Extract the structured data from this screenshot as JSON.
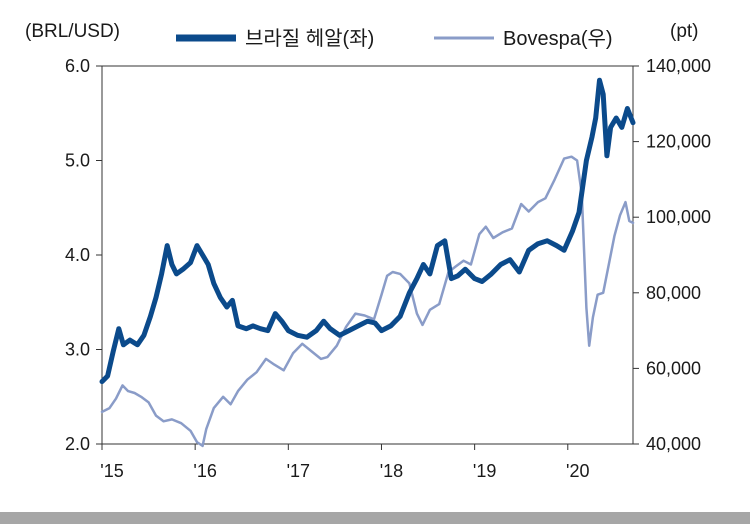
{
  "chart_data": {
    "type": "line",
    "title": "",
    "left_axis_unit": "(BRL/USD)",
    "right_axis_unit": "(pt)",
    "left_axis": {
      "ticks": [
        "6.0",
        "5.0",
        "4.0",
        "3.0",
        "2.0"
      ],
      "range": [
        2.0,
        6.0
      ]
    },
    "right_axis": {
      "ticks": [
        "140,000",
        "120,000",
        "100,000",
        "80,000",
        "60,000",
        "40,000"
      ],
      "range": [
        40000,
        140000
      ]
    },
    "x_axis": {
      "ticks": [
        "'15",
        "'16",
        "'17",
        "'18",
        "'19",
        "'20"
      ],
      "tick_years": [
        2015,
        2016,
        2017,
        2018,
        2019,
        2020
      ],
      "range": [
        2015.0,
        2020.7
      ]
    },
    "series": [
      {
        "name": "브라질 헤알(좌)",
        "axis": "left",
        "color": "#0b4a8b",
        "points": [
          [
            2015.0,
            2.66
          ],
          [
            2015.06,
            2.72
          ],
          [
            2015.12,
            2.98
          ],
          [
            2015.18,
            3.22
          ],
          [
            2015.23,
            3.05
          ],
          [
            2015.3,
            3.1
          ],
          [
            2015.38,
            3.05
          ],
          [
            2015.45,
            3.15
          ],
          [
            2015.52,
            3.35
          ],
          [
            2015.58,
            3.55
          ],
          [
            2015.64,
            3.8
          ],
          [
            2015.7,
            4.1
          ],
          [
            2015.75,
            3.9
          ],
          [
            2015.8,
            3.8
          ],
          [
            2015.87,
            3.85
          ],
          [
            2015.95,
            3.92
          ],
          [
            2016.02,
            4.1
          ],
          [
            2016.08,
            4.0
          ],
          [
            2016.14,
            3.9
          ],
          [
            2016.2,
            3.7
          ],
          [
            2016.27,
            3.55
          ],
          [
            2016.34,
            3.45
          ],
          [
            2016.4,
            3.52
          ],
          [
            2016.46,
            3.25
          ],
          [
            2016.55,
            3.22
          ],
          [
            2016.62,
            3.25
          ],
          [
            2016.7,
            3.22
          ],
          [
            2016.78,
            3.2
          ],
          [
            2016.86,
            3.38
          ],
          [
            2016.93,
            3.3
          ],
          [
            2017.0,
            3.2
          ],
          [
            2017.1,
            3.15
          ],
          [
            2017.2,
            3.13
          ],
          [
            2017.3,
            3.2
          ],
          [
            2017.38,
            3.3
          ],
          [
            2017.45,
            3.22
          ],
          [
            2017.55,
            3.15
          ],
          [
            2017.65,
            3.2
          ],
          [
            2017.75,
            3.25
          ],
          [
            2017.85,
            3.3
          ],
          [
            2017.93,
            3.28
          ],
          [
            2018.0,
            3.2
          ],
          [
            2018.1,
            3.25
          ],
          [
            2018.2,
            3.35
          ],
          [
            2018.3,
            3.6
          ],
          [
            2018.38,
            3.75
          ],
          [
            2018.45,
            3.9
          ],
          [
            2018.52,
            3.8
          ],
          [
            2018.6,
            4.1
          ],
          [
            2018.68,
            4.15
          ],
          [
            2018.75,
            3.75
          ],
          [
            2018.82,
            3.78
          ],
          [
            2018.9,
            3.85
          ],
          [
            2019.0,
            3.75
          ],
          [
            2019.08,
            3.72
          ],
          [
            2019.18,
            3.8
          ],
          [
            2019.28,
            3.9
          ],
          [
            2019.38,
            3.95
          ],
          [
            2019.48,
            3.82
          ],
          [
            2019.58,
            4.05
          ],
          [
            2019.68,
            4.12
          ],
          [
            2019.78,
            4.15
          ],
          [
            2019.88,
            4.1
          ],
          [
            2019.96,
            4.05
          ],
          [
            2020.05,
            4.25
          ],
          [
            2020.12,
            4.45
          ],
          [
            2020.2,
            5.0
          ],
          [
            2020.26,
            5.25
          ],
          [
            2020.3,
            5.45
          ],
          [
            2020.34,
            5.85
          ],
          [
            2020.38,
            5.7
          ],
          [
            2020.42,
            5.05
          ],
          [
            2020.46,
            5.35
          ],
          [
            2020.52,
            5.45
          ],
          [
            2020.58,
            5.35
          ],
          [
            2020.64,
            5.55
          ],
          [
            2020.7,
            5.4
          ]
        ]
      },
      {
        "name": "Bovespa(우)",
        "axis": "right",
        "color": "#8a9cc8",
        "points": [
          [
            2015.0,
            48500
          ],
          [
            2015.08,
            49500
          ],
          [
            2015.15,
            52000
          ],
          [
            2015.22,
            55500
          ],
          [
            2015.28,
            54000
          ],
          [
            2015.35,
            53500
          ],
          [
            2015.42,
            52500
          ],
          [
            2015.5,
            51000
          ],
          [
            2015.58,
            47500
          ],
          [
            2015.66,
            46000
          ],
          [
            2015.75,
            46500
          ],
          [
            2015.85,
            45500
          ],
          [
            2015.95,
            43500
          ],
          [
            2016.02,
            40500
          ],
          [
            2016.08,
            39500
          ],
          [
            2016.12,
            44000
          ],
          [
            2016.2,
            49500
          ],
          [
            2016.3,
            52500
          ],
          [
            2016.38,
            50500
          ],
          [
            2016.46,
            54000
          ],
          [
            2016.56,
            57000
          ],
          [
            2016.66,
            59000
          ],
          [
            2016.76,
            62500
          ],
          [
            2016.85,
            61000
          ],
          [
            2016.95,
            59500
          ],
          [
            2017.05,
            64000
          ],
          [
            2017.15,
            66500
          ],
          [
            2017.25,
            64500
          ],
          [
            2017.35,
            62500
          ],
          [
            2017.42,
            63000
          ],
          [
            2017.52,
            66000
          ],
          [
            2017.62,
            71000
          ],
          [
            2017.72,
            74500
          ],
          [
            2017.82,
            74000
          ],
          [
            2017.92,
            73000
          ],
          [
            2018.0,
            79500
          ],
          [
            2018.06,
            84500
          ],
          [
            2018.12,
            85500
          ],
          [
            2018.2,
            85000
          ],
          [
            2018.3,
            82500
          ],
          [
            2018.38,
            74500
          ],
          [
            2018.44,
            71500
          ],
          [
            2018.52,
            75500
          ],
          [
            2018.62,
            77000
          ],
          [
            2018.72,
            85500
          ],
          [
            2018.8,
            87000
          ],
          [
            2018.88,
            88500
          ],
          [
            2018.96,
            87500
          ],
          [
            2019.05,
            95500
          ],
          [
            2019.12,
            97500
          ],
          [
            2019.2,
            94500
          ],
          [
            2019.3,
            96000
          ],
          [
            2019.4,
            97000
          ],
          [
            2019.5,
            103500
          ],
          [
            2019.58,
            101500
          ],
          [
            2019.68,
            104000
          ],
          [
            2019.76,
            105000
          ],
          [
            2019.86,
            110000
          ],
          [
            2019.96,
            115500
          ],
          [
            2020.04,
            116000
          ],
          [
            2020.1,
            115000
          ],
          [
            2020.15,
            106000
          ],
          [
            2020.2,
            76000
          ],
          [
            2020.23,
            66000
          ],
          [
            2020.27,
            73500
          ],
          [
            2020.32,
            79500
          ],
          [
            2020.38,
            80000
          ],
          [
            2020.44,
            87500
          ],
          [
            2020.5,
            95000
          ],
          [
            2020.56,
            100500
          ],
          [
            2020.62,
            104000
          ],
          [
            2020.66,
            99000
          ],
          [
            2020.7,
            98500
          ]
        ]
      }
    ]
  }
}
